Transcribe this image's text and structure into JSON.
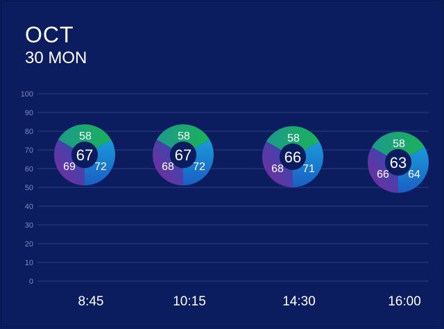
{
  "header": {
    "month": "OCT",
    "day": "30 MON"
  },
  "colors": {
    "background": "#0b1c5f",
    "grid": "#2d3f86",
    "green": "#1aa36a",
    "blue": "#1a78d2",
    "purple": "#6a2e9e",
    "center": "#0b1c5f"
  },
  "chart_data": {
    "type": "scatter",
    "ylim": [
      0,
      100
    ],
    "yticks": [
      "100",
      "90",
      "80",
      "70",
      "60",
      "50",
      "40",
      "30",
      "20",
      "10",
      "0"
    ],
    "categories": [
      "8:45",
      "10:15",
      "14:30",
      "16:00"
    ],
    "points": [
      {
        "x": "8:45",
        "center": "67",
        "top": "58",
        "right": "72",
        "left": "69"
      },
      {
        "x": "10:15",
        "center": "67",
        "top": "58",
        "right": "72",
        "left": "68"
      },
      {
        "x": "14:30",
        "center": "66",
        "top": "58",
        "right": "71",
        "left": "68"
      },
      {
        "x": "16:00",
        "center": "63",
        "top": "58",
        "right": "64",
        "left": "66"
      }
    ]
  }
}
